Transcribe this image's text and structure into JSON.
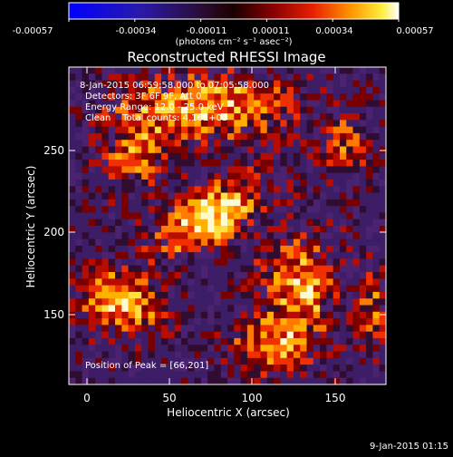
{
  "colorbar": {
    "ticks": [
      "-0.00057",
      "-0.00034",
      "-0.00011",
      "0.00011",
      "0.00034",
      "0.00057"
    ],
    "unit_label": "(photons cm⁻² s⁻¹ asec⁻²)"
  },
  "title": "Reconstructed RHESSI Image",
  "info": {
    "time_range": "8-Jan-2015 06:59:58.000 to 07:05:58.000",
    "detectors": "Detectors: 3F 6F 9F, Att 0",
    "energy_range": "Energy Range: 12.0 - 25.0 keV",
    "clean_counts": "Clean    Total counts: 4.16E+03"
  },
  "peak_label": "Position of Peak = [66,201]",
  "axes": {
    "xlabel": "Heliocentric X (arcsec)",
    "ylabel": "Heliocentric Y (arcsec)",
    "xticks": [
      "0",
      "50",
      "100",
      "150"
    ],
    "yticks": [
      "150",
      "200",
      "250"
    ]
  },
  "footer_date": "9-Jan-2015 01:15",
  "colors": {
    "colormap_low": "#0000ff",
    "colormap_mid": "#1a0000",
    "colormap_high": "#ffffff",
    "frame": "#ffffff"
  }
}
